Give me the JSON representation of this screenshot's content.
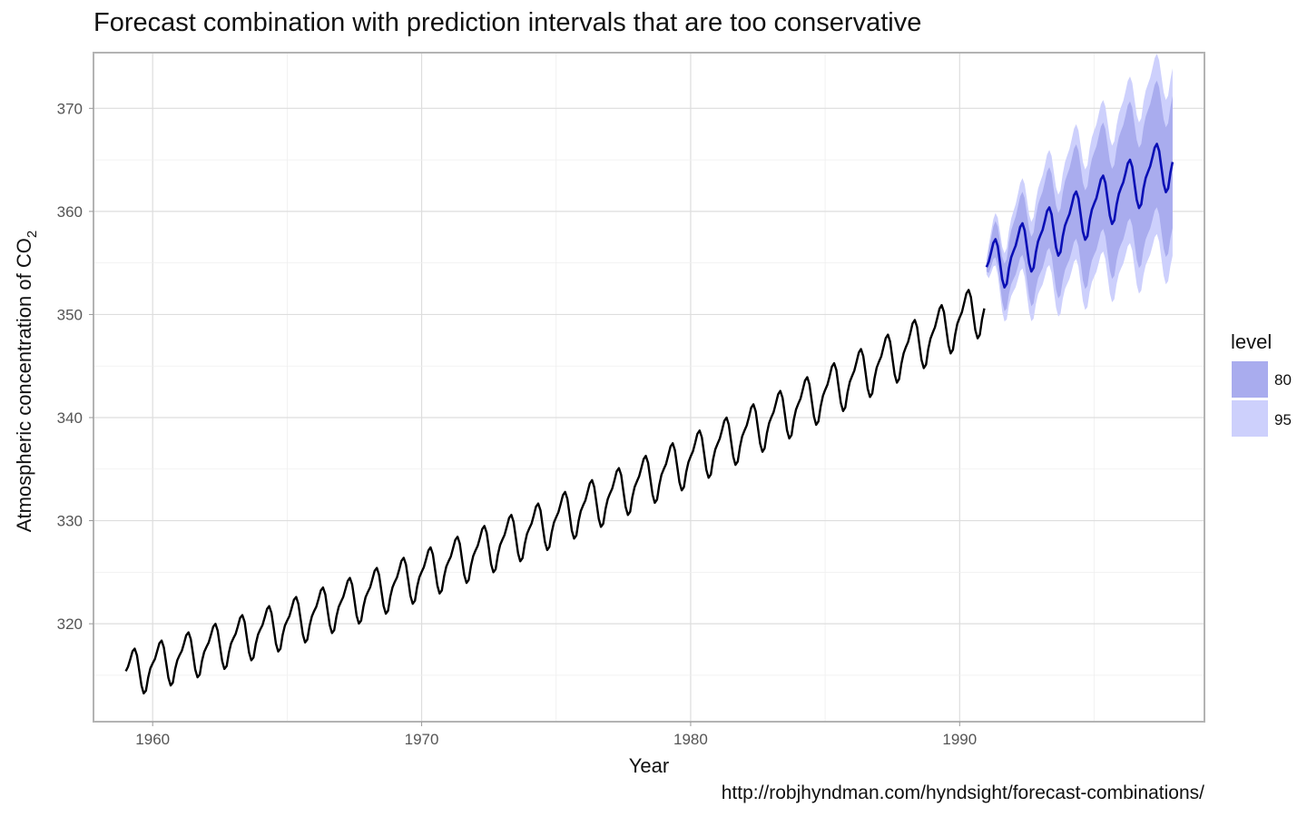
{
  "chart_data": {
    "type": "line",
    "title": "Forecast combination with prediction intervals that are too conservative",
    "xlabel": "Year",
    "ylabel": "Atmospheric concentration of CO",
    "ylabel_subscript": "2",
    "caption": "http://robjhyndman.com/hyndsight/forecast-combinations/",
    "xlim": [
      1957.8,
      1999.1
    ],
    "ylim": [
      310.5,
      375.4
    ],
    "x_ticks": [
      1960,
      1970,
      1980,
      1990
    ],
    "x_tick_labels": [
      "1960",
      "1970",
      "1980",
      "1990"
    ],
    "y_ticks": [
      320,
      330,
      340,
      350,
      360,
      370
    ],
    "y_tick_labels": [
      "320",
      "330",
      "340",
      "350",
      "360",
      "370"
    ],
    "grid": true,
    "legend": {
      "title": "level",
      "placement": "right",
      "entries": [
        {
          "label": "80",
          "color": "#a9acee"
        },
        {
          "label": "95",
          "color": "#cdd0fc"
        }
      ]
    },
    "colors": {
      "observed": "#000000",
      "forecast": "#0a0fb5",
      "interval_80": "#a9acee",
      "interval_95": "#cdd0fc"
    },
    "series": [
      {
        "role": "observed",
        "frequency": 12,
        "start": "1959-01",
        "end": "1990-12",
        "trend_base": 315.4,
        "trend_growth_per_year": 0.75,
        "trend_accel_per_year2": 0.0115,
        "seasonal_amplitude_start": 2.65,
        "seasonal_amplitude_end": 3.0,
        "monthly_pattern": [
          0.0,
          0.35,
          1.0,
          1.7,
          1.9,
          1.2,
          -0.3,
          -1.8,
          -2.6,
          -2.4,
          -1.2,
          -0.4
        ]
      },
      {
        "role": "forecast",
        "frequency": 12,
        "start": "1991-01",
        "end": "1997-12",
        "trend_base": 354.6,
        "trend_growth_per_year": 1.54,
        "seasonal_amplitude": 3.0,
        "monthly_pattern": [
          0.0,
          0.35,
          1.0,
          1.7,
          1.9,
          1.2,
          -0.3,
          -1.8,
          -2.6,
          -2.4,
          -1.2,
          -0.4
        ]
      }
    ],
    "intervals": [
      {
        "level": "95",
        "half_width_start": 0.7,
        "half_width_end": 9.1
      },
      {
        "level": "80",
        "half_width_start": 0.45,
        "half_width_end": 6.4
      }
    ]
  }
}
